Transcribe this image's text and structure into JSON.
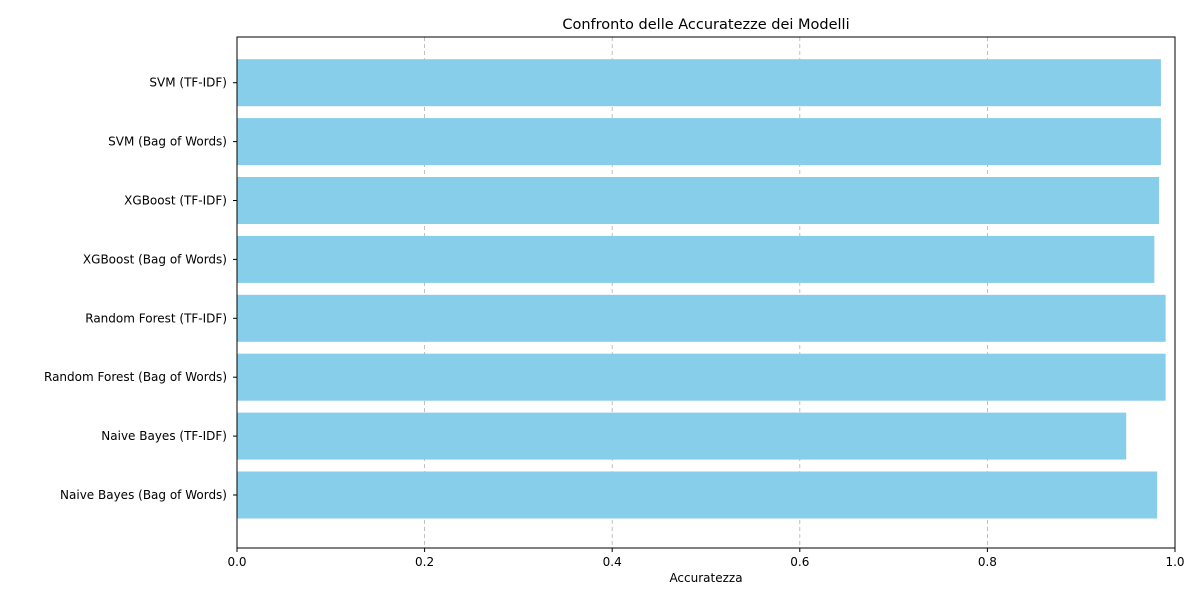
{
  "chart_data": {
    "type": "bar",
    "orientation": "horizontal",
    "title": "Confronto delle Accuratezze dei Modelli",
    "xlabel": "Accuratezza",
    "ylabel": "",
    "xlim": [
      0,
      1.0
    ],
    "xticks": [
      "0.0",
      "0.2",
      "0.4",
      "0.6",
      "0.8",
      "1.0"
    ],
    "grid": "x-axis dashed",
    "bar_color": "#87CEEB",
    "categories": [
      "Naive Bayes (Bag of Words)",
      "Naive Bayes (TF-IDF)",
      "Random Forest (Bag of Words)",
      "Random Forest (TF-IDF)",
      "XGBoost (Bag of Words)",
      "XGBoost (TF-IDF)",
      "SVM (Bag of Words)",
      "SVM (TF-IDF)"
    ],
    "values": [
      0.981,
      0.948,
      0.99,
      0.99,
      0.978,
      0.983,
      0.985,
      0.985
    ]
  }
}
